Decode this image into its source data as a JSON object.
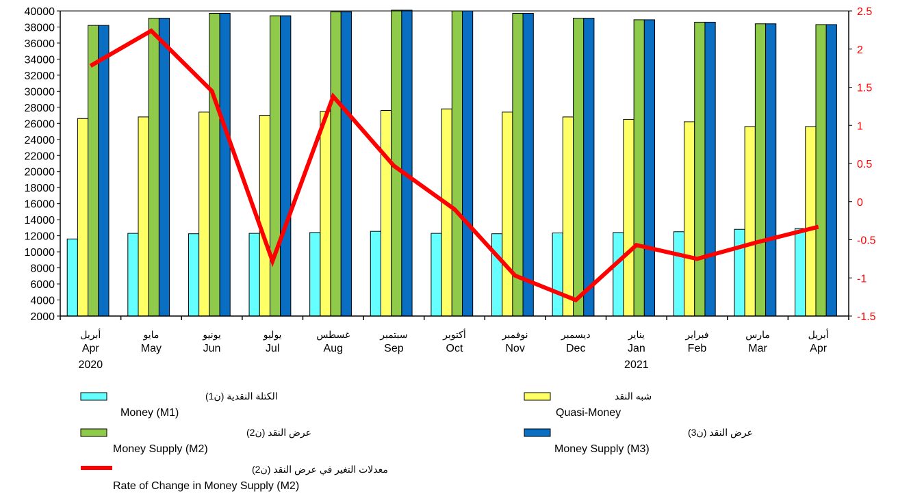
{
  "chart_data": {
    "type": "bar",
    "categories_ar": [
      "أبريل",
      "مايو",
      "يونيو",
      "يوليو",
      "غسطس",
      "سبتمبر",
      "أكتوبر",
      "نوفمبر",
      "ديسمبر",
      "يناير",
      "فبراير",
      "مارس",
      "أبريل"
    ],
    "categories_en": [
      "Apr",
      "May",
      "Jun",
      "Jul",
      "Aug",
      "Sep",
      "Oct",
      "Nov",
      "Dec",
      "Jan",
      "Feb",
      "Mar",
      "Apr"
    ],
    "year_labels": [
      {
        "index": 0,
        "label": "2020"
      },
      {
        "index": 9,
        "label": "2021"
      }
    ],
    "series": [
      {
        "name_ar": "الكتلة النقدية (ن1)",
        "name": "Money (M1)",
        "color": "#66ffff",
        "axis": "left",
        "values": [
          11600,
          12300,
          12250,
          12300,
          12400,
          12550,
          12300,
          12250,
          12350,
          12400,
          12500,
          12800,
          12900
        ]
      },
      {
        "name_ar": "شبه النقد",
        "name": "Quasi-Money",
        "color": "#ffff66",
        "axis": "left",
        "values": [
          26600,
          26800,
          27400,
          27000,
          27500,
          27600,
          27800,
          27400,
          26800,
          26500,
          26200,
          25600,
          25600
        ]
      },
      {
        "name_ar": "عرض النقد (ن2)",
        "name": "Money Supply (M2)",
        "color": "#8fca4a",
        "axis": "left",
        "values": [
          38200,
          39100,
          39700,
          39400,
          39900,
          40100,
          40000,
          39700,
          39100,
          38900,
          38600,
          38400,
          38300
        ]
      },
      {
        "name_ar": "عرض النقد (ن3)",
        "name": "Money Supply (M3)",
        "color": "#0a6fc2",
        "axis": "left",
        "values": [
          38200,
          39100,
          39700,
          39400,
          39900,
          40100,
          40000,
          39700,
          39100,
          38900,
          38600,
          38400,
          38300
        ]
      }
    ],
    "line_series": {
      "name_ar": "معدلات التغير في عرض النقد (ن2)",
      "name": "Rate of Change in Money Supply (M2)",
      "color": "#ff0000",
      "axis": "right",
      "values": [
        1.78,
        2.24,
        1.45,
        -0.78,
        1.38,
        0.47,
        -0.1,
        -0.97,
        -1.29,
        -0.57,
        -0.75,
        -0.53,
        -0.33
      ]
    },
    "y_left": {
      "min": 2000,
      "max": 40000,
      "step": 2000
    },
    "y_right": {
      "min": -1.5,
      "max": 2.5,
      "step": 0.5,
      "tick_labels": [
        "-1.5",
        "-1",
        "-0.5",
        "0",
        "0.5",
        "1",
        "1.5",
        "2",
        "2.5"
      ]
    },
    "legend_placement": "bottom",
    "grid": false,
    "title": "",
    "xlabel": "",
    "ylabel": ""
  }
}
